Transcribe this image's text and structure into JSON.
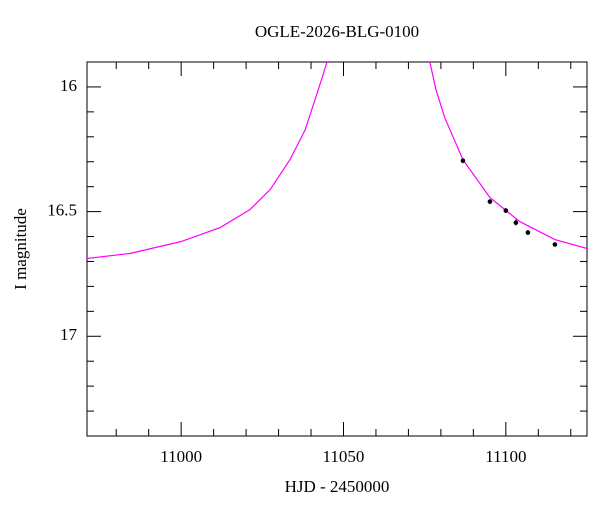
{
  "chart_data": {
    "type": "scatter",
    "title": "OGLE-2026-BLG-0100",
    "x_label": "HJD - 2450000",
    "y_label": "I magnitude",
    "xlim": [
      10971,
      11125
    ],
    "ylim": [
      17.4,
      15.9
    ],
    "y_inverted": true,
    "xticks": [
      11000,
      11050,
      11100
    ],
    "yticks": [
      16,
      16.5,
      17
    ],
    "xminorticks": [
      10980,
      10990,
      11010,
      11020,
      11030,
      11040,
      11060,
      11070,
      11080,
      11090,
      11110,
      11120
    ],
    "yminorticks": [
      16.1,
      16.2,
      16.3,
      16.4,
      16.6,
      16.7,
      16.8,
      16.9,
      17.1,
      17.2,
      17.3
    ],
    "series": [
      {
        "type": "line",
        "color": "#ff00ff",
        "x": [
          10971,
          10984.2,
          11000,
          11012,
          11021.2,
          11027.4,
          11033.5,
          11038.2,
          11041.2,
          11043.4,
          11044.9,
          11061,
          11076.6,
          11078.5,
          11081.2,
          11086.8,
          11095.1,
          11104.3,
          11115.1,
          11125
        ],
        "values": [
          16.688,
          16.668,
          16.62,
          16.564,
          16.492,
          16.412,
          16.292,
          16.172,
          16.052,
          15.964,
          15.9,
          null,
          15.9,
          16.012,
          16.124,
          16.292,
          16.444,
          16.54,
          16.612,
          16.648
        ]
      },
      {
        "type": "errorbar",
        "color": "#000000",
        "x": [
          11086.8,
          11095.1,
          11100,
          11103.1,
          11106.8,
          11115.1
        ],
        "values": [
          16.296,
          16.46,
          16.496,
          16.544,
          16.584,
          16.632
        ],
        "errors": [
          0.01,
          0.01,
          0.01,
          0.012,
          0.01,
          0.008
        ]
      }
    ]
  }
}
